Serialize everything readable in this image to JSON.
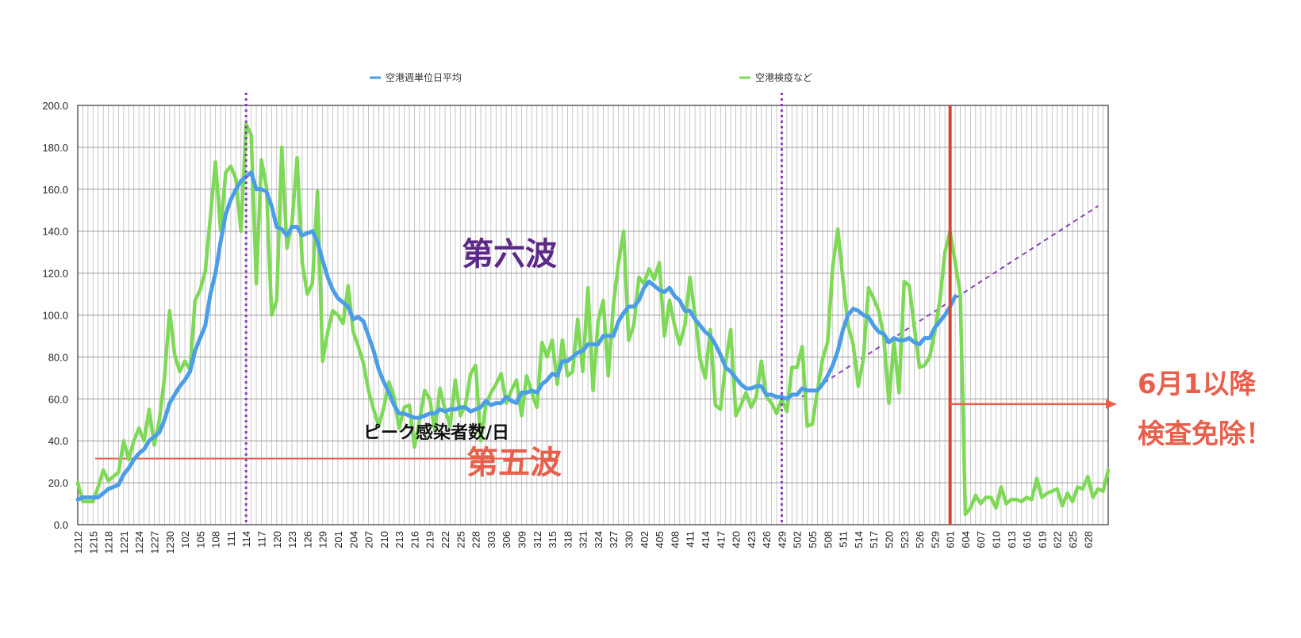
{
  "chart_data": {
    "type": "line",
    "y_range": [
      0,
      200
    ],
    "y_ticks": [
      "0.0",
      "20.0",
      "40.0",
      "60.0",
      "80.0",
      "100.0",
      "120.0",
      "140.0",
      "160.0",
      "180.0",
      "200.0"
    ],
    "grid": true,
    "legend_placement": "top",
    "x_tick_labels": [
      "1212",
      "1215",
      "1218",
      "1221",
      "1224",
      "1227",
      "1230",
      "102",
      "105",
      "108",
      "111",
      "114",
      "117",
      "120",
      "123",
      "126",
      "129",
      "201",
      "204",
      "207",
      "210",
      "213",
      "216",
      "219",
      "222",
      "225",
      "228",
      "303",
      "306",
      "309",
      "312",
      "315",
      "318",
      "321",
      "324",
      "327",
      "330",
      "402",
      "405",
      "408",
      "411",
      "414",
      "417",
      "420",
      "423",
      "426",
      "429",
      "502",
      "505",
      "508",
      "511",
      "514",
      "517",
      "520",
      "523",
      "526",
      "529",
      "601",
      "604",
      "607",
      "610",
      "613",
      "616",
      "619",
      "622",
      "625",
      "628"
    ],
    "series": [
      {
        "name": "空港週単位日平均",
        "color": "#4a9de6",
        "values": [
          12,
          13,
          13,
          13,
          13,
          15,
          17,
          18,
          19,
          24,
          27,
          31,
          34,
          36,
          40,
          42,
          44,
          50,
          58,
          62,
          66,
          69,
          73,
          83,
          89,
          95,
          110,
          120,
          135,
          148,
          155,
          160,
          164,
          166,
          168,
          160,
          160,
          159,
          152,
          142,
          141,
          138,
          142,
          142,
          138,
          139,
          140,
          135,
          126,
          118,
          112,
          108,
          106,
          104,
          98,
          99,
          97,
          90,
          83,
          74,
          68,
          63,
          57,
          53,
          53,
          52,
          51,
          51,
          52,
          53,
          53,
          55,
          54,
          55,
          55,
          56,
          56,
          54,
          55,
          56,
          59,
          57,
          58,
          58,
          61,
          59,
          58,
          63,
          63,
          64,
          63,
          67,
          69,
          72,
          71,
          78,
          78,
          80,
          82,
          83,
          86,
          86,
          86,
          90,
          90,
          90,
          97,
          101,
          104,
          104,
          107,
          113,
          116,
          114,
          112,
          111,
          113,
          109,
          107,
          102,
          102,
          98,
          95,
          92,
          90,
          86,
          81,
          75,
          73,
          70,
          67,
          65,
          65,
          66,
          66,
          62,
          62,
          61,
          61,
          60,
          62,
          62,
          65,
          64,
          64,
          64,
          67,
          71,
          76,
          83,
          93,
          100,
          103,
          102,
          100,
          99,
          95,
          92,
          91,
          87,
          89,
          88,
          88,
          89,
          87,
          86,
          89,
          89,
          94,
          97,
          100,
          104,
          109
        ],
        "values_after": []
      },
      {
        "name": "空港検疫など",
        "color": "#7ed957",
        "values": [
          20,
          11,
          11,
          11,
          18,
          26,
          21,
          23,
          25,
          40,
          31,
          40,
          46,
          40,
          55,
          38,
          50,
          70,
          102,
          81,
          73,
          78,
          74,
          107,
          112,
          121,
          147,
          173,
          140,
          168,
          171,
          165,
          140,
          191,
          186,
          115,
          174,
          161,
          100,
          107,
          180,
          132,
          144,
          175,
          125,
          110,
          115,
          159,
          78,
          92,
          102,
          100,
          96,
          114,
          92,
          85,
          77,
          64,
          55,
          47,
          56,
          68,
          61,
          46,
          56,
          57,
          37,
          50,
          64,
          60,
          45,
          65,
          55,
          47,
          69,
          52,
          57,
          72,
          76,
          40,
          57,
          63,
          67,
          72,
          58,
          64,
          69,
          52,
          71,
          63,
          56,
          87,
          80,
          88,
          67,
          88,
          71,
          73,
          98,
          73,
          113,
          64,
          97,
          107,
          71,
          105,
          125,
          140,
          88,
          95,
          118,
          115,
          122,
          117,
          125,
          90,
          107,
          95,
          86,
          95,
          118,
          100,
          79,
          70,
          93,
          57,
          55,
          77,
          93,
          52,
          57,
          63,
          56,
          61,
          78,
          61,
          58,
          53,
          60,
          54,
          75,
          75,
          85,
          47,
          48,
          64,
          79,
          87,
          123,
          141,
          117,
          95,
          86,
          66,
          79,
          113,
          108,
          102,
          90,
          58,
          88,
          63,
          116,
          114,
          94,
          75,
          76,
          80,
          92,
          107,
          130,
          140,
          125,
          110,
          5,
          8,
          14,
          10,
          13,
          13,
          8,
          18,
          10,
          12,
          12,
          11,
          13,
          12,
          22,
          13,
          15,
          16,
          17,
          9,
          15,
          11,
          18,
          17,
          23,
          13,
          17,
          16,
          26
        ],
        "values_after": []
      }
    ],
    "vertical_markers": [
      {
        "x_label": "114",
        "style": "dotted",
        "color": "#8a3fb5"
      },
      {
        "x_label": "429",
        "style": "dotted",
        "color": "#8a3fb5"
      },
      {
        "x_label": "601",
        "style": "solid",
        "color": "#d9442e"
      }
    ],
    "horizontal_reference": {
      "y": 31.5,
      "color": "#e8604c"
    },
    "trend_line": {
      "from_index": 142,
      "from_y": 61,
      "to_index": 200,
      "to_y": 152,
      "color": "#8a3fb5",
      "style": "dashed"
    },
    "arrow": {
      "y": 57.5,
      "color": "#e8604c"
    },
    "annotations": {
      "wave6": "第六波",
      "wave5": "第五波",
      "peak_label": "ピーク感染者数/日",
      "exempt_line1": "6月1以降",
      "exempt_line2": "検査免除！"
    }
  }
}
